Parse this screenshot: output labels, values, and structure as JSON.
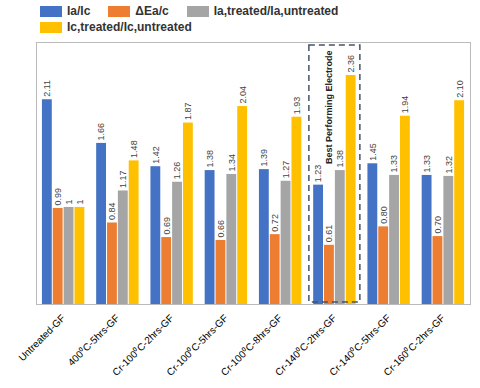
{
  "chart_data": {
    "type": "bar",
    "categories": [
      "Untreated-GF",
      "400⁰C-5hrs-GF",
      "Cr-100⁰C-2hrs-GF",
      "Cr-100⁰C-5hrs-GF",
      "Cr-100⁰C-8hrs-GF",
      "Cr-140⁰C-2hrs-GF",
      "Cr-140⁰C-5hrs-GF",
      "Cr-160⁰C-2hrs-GF"
    ],
    "series": [
      {
        "name": "Ia/Ic",
        "color": "#4472c4",
        "values": [
          2.11,
          1.66,
          1.42,
          1.38,
          1.39,
          1.23,
          1.45,
          1.33
        ],
        "value_labels": [
          "2.11",
          "1.66",
          "1.42",
          "1.38",
          "1.39",
          "1.23",
          "1.45",
          "1.33"
        ]
      },
      {
        "name": "ΔEa/c",
        "color": "#ed7d31",
        "values": [
          0.99,
          0.84,
          0.69,
          0.66,
          0.72,
          0.61,
          0.8,
          0.7
        ],
        "value_labels": [
          "0.99",
          "0.84",
          "0.69",
          "0.66",
          "0.72",
          "0.61",
          "0.80",
          "0.70"
        ]
      },
      {
        "name": "Ia,treated/Ia,untreated",
        "color": "#a5a5a5",
        "values": [
          1,
          1.17,
          1.26,
          1.34,
          1.27,
          1.38,
          1.33,
          1.32
        ],
        "value_labels": [
          "1",
          "1.17",
          "1.26",
          "1.34",
          "1.27",
          "1.38",
          "1.33",
          "1.32"
        ]
      },
      {
        "name": "Ic,treated/Ic,untreated",
        "color": "#ffc000",
        "values": [
          1,
          1.48,
          1.87,
          2.04,
          1.93,
          2.36,
          1.94,
          2.1
        ],
        "value_labels": [
          "1",
          "1.48",
          "1.87",
          "2.04",
          "1.93",
          "2.36",
          "1.94",
          "2.10"
        ]
      }
    ],
    "ylim": [
      0,
      2.7
    ],
    "data_labels": true,
    "tick_labels": "x",
    "legend": "top",
    "annotations": [
      {
        "text": "Best Performing Electrode",
        "category": "Cr-140⁰C-2hrs-GF"
      }
    ]
  }
}
